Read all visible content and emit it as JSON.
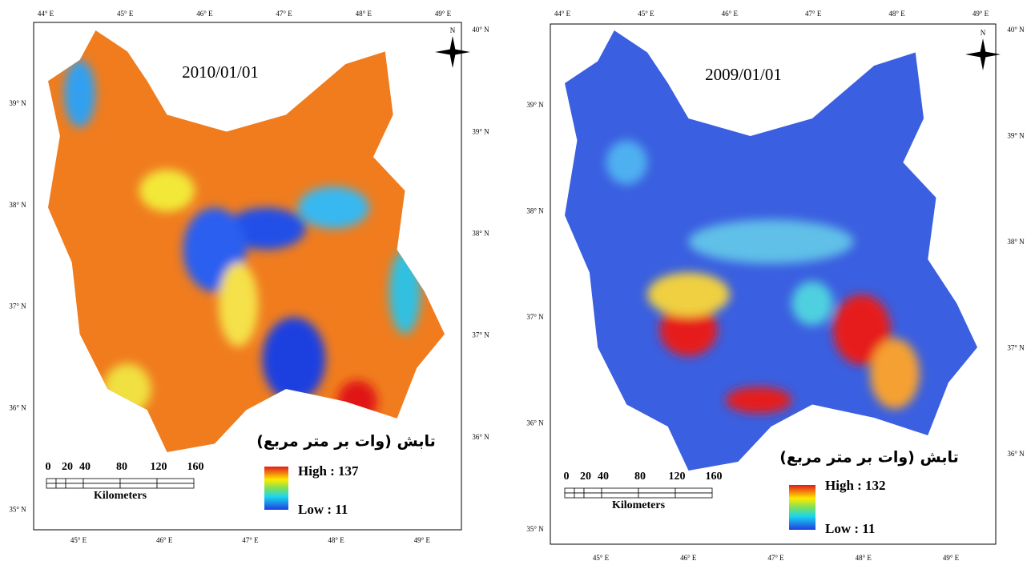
{
  "maps": [
    {
      "date": "2010/01/01",
      "top_ticks": [
        "44° E",
        "45° E",
        "46° E",
        "47° E",
        "48° E",
        "49° E"
      ],
      "bottom_ticks": [
        "45° E",
        "46° E",
        "47° E",
        "48° E",
        "49° E"
      ],
      "left_ticks": [
        "39° N",
        "38° N",
        "37° N",
        "36° N",
        "35° N"
      ],
      "right_ticks": [
        "40° N",
        "39° N",
        "38° N",
        "37° N",
        "36° N"
      ],
      "north": "N",
      "legend": {
        "title": "تابش (وات بر متر مربع)",
        "high": "High : 137",
        "low": "Low : 11"
      },
      "scale": {
        "labels": [
          "0",
          "20",
          "40",
          "80",
          "120",
          "160"
        ],
        "unit": "Kilometers"
      }
    },
    {
      "date": "2009/01/01",
      "top_ticks": [
        "44° E",
        "45° E",
        "46° E",
        "47° E",
        "48° E",
        "49° E"
      ],
      "bottom_ticks": [
        "45° E",
        "46° E",
        "47° E",
        "48° E",
        "49° E"
      ],
      "left_ticks": [
        "39° N",
        "38° N",
        "37° N",
        "36° N",
        "35° N"
      ],
      "right_ticks": [
        "40° N",
        "39° N",
        "38° N",
        "37° N",
        "36° N"
      ],
      "north": "N",
      "legend": {
        "title": "تابش (وات بر متر مربع)",
        "high": "High : 132",
        "low": "Low : 11"
      },
      "scale": {
        "labels": [
          "0",
          "20",
          "40",
          "80",
          "120",
          "160"
        ],
        "unit": "Kilometers"
      }
    }
  ]
}
